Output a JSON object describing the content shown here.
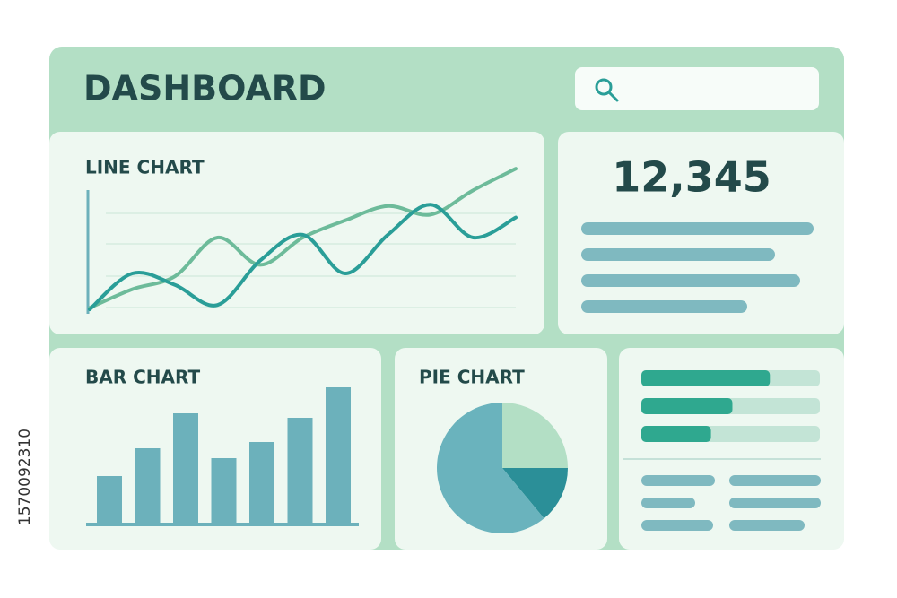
{
  "header": {
    "title": "DASHBOARD"
  },
  "side_id": "1570092310",
  "stat": {
    "value": "12,345"
  },
  "progress": {
    "values": [
      72,
      51,
      39
    ],
    "max": 100
  },
  "chart_data": [
    {
      "type": "line",
      "title": "LINE CHART",
      "categories": [
        null,
        null,
        null,
        null,
        null,
        null,
        null,
        null,
        null,
        null,
        null
      ],
      "ylim": [
        0,
        100
      ],
      "series": [
        {
          "color": "#6dbb9a",
          "values": [
            1,
            14,
            23,
            50,
            31,
            50,
            62,
            72,
            66,
            83,
            98
          ]
        },
        {
          "color": "#2a9e98",
          "values": [
            0,
            25,
            17,
            3,
            34,
            52,
            25,
            52,
            73,
            50,
            64
          ]
        }
      ]
    },
    {
      "type": "bar",
      "title": "BAR CHART",
      "color": "#6cb1bb",
      "values": [
        53,
        84,
        123,
        73,
        91,
        118,
        152
      ],
      "ylim": [
        0,
        160
      ]
    },
    {
      "type": "pie",
      "title": "PIE CHART",
      "values": [
        25,
        14,
        61
      ],
      "colors": [
        "#b3dfc5",
        "#2b8f98",
        "#6ab3bd"
      ]
    }
  ]
}
